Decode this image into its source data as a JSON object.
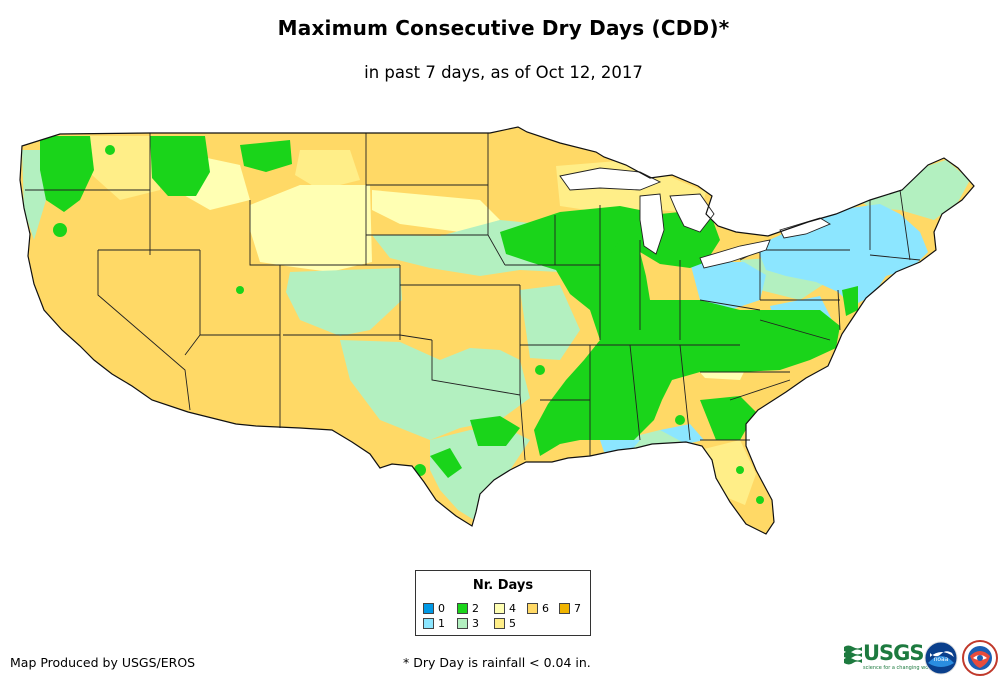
{
  "title": "Maximum Consecutive Dry Days (CDD)*",
  "subtitle": "in past 7 days, as of Oct 12, 2017",
  "legend": {
    "title": "Nr. Days",
    "items": [
      {
        "label": "0",
        "color": "#0099e6"
      },
      {
        "label": "1",
        "color": "#8ce6ff"
      },
      {
        "label": "2",
        "color": "#1ad41a"
      },
      {
        "label": "3",
        "color": "#b3f0c0"
      },
      {
        "label": "4",
        "color": "#ffffb3"
      },
      {
        "label": "5",
        "color": "#ffee88"
      },
      {
        "label": "6",
        "color": "#ffd966"
      },
      {
        "label": "7",
        "color": "#f0b400"
      }
    ]
  },
  "footer": {
    "producer": "Map Produced by USGS/EROS",
    "note": "* Dry Day is rainfall < 0.04 in."
  },
  "logos": {
    "usgs_word": "USGS",
    "usgs_tagline": "science for a changing world",
    "noaa": "noaa"
  },
  "map": {
    "region": "Contiguous United States",
    "land_color": "#ffd966",
    "border_color": "#222222"
  }
}
